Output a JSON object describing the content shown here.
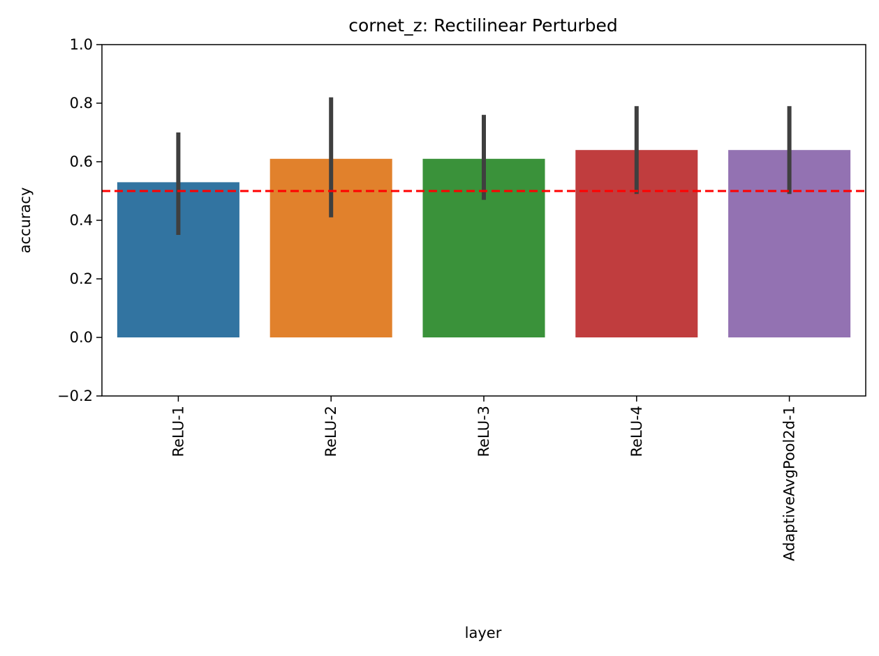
{
  "chart_data": {
    "type": "bar",
    "title": "cornet_z: Rectilinear Perturbed",
    "xlabel": "layer",
    "ylabel": "accuracy",
    "ylim": [
      -0.2,
      1.0
    ],
    "yticks": [
      "−0.2",
      "0.0",
      "0.2",
      "0.4",
      "0.6",
      "0.8",
      "1.0"
    ],
    "yticks_values": [
      -0.2,
      0.0,
      0.2,
      0.4,
      0.6,
      0.8,
      1.0
    ],
    "categories": [
      "ReLU-1",
      "ReLU-2",
      "ReLU-3",
      "ReLU-4",
      "AdaptiveAvgPool2d-1"
    ],
    "values": [
      0.53,
      0.61,
      0.61,
      0.64,
      0.64
    ],
    "error_low": [
      0.35,
      0.41,
      0.47,
      0.49,
      0.49
    ],
    "error_high": [
      0.7,
      0.82,
      0.76,
      0.79,
      0.79
    ],
    "colors": [
      "#3274a1",
      "#e1812c",
      "#3a923a",
      "#c03d3e",
      "#9372b2"
    ],
    "reference_line": {
      "value": 0.5,
      "color": "#ff0000",
      "style": "dashed"
    },
    "grid": false,
    "legend": "none"
  }
}
